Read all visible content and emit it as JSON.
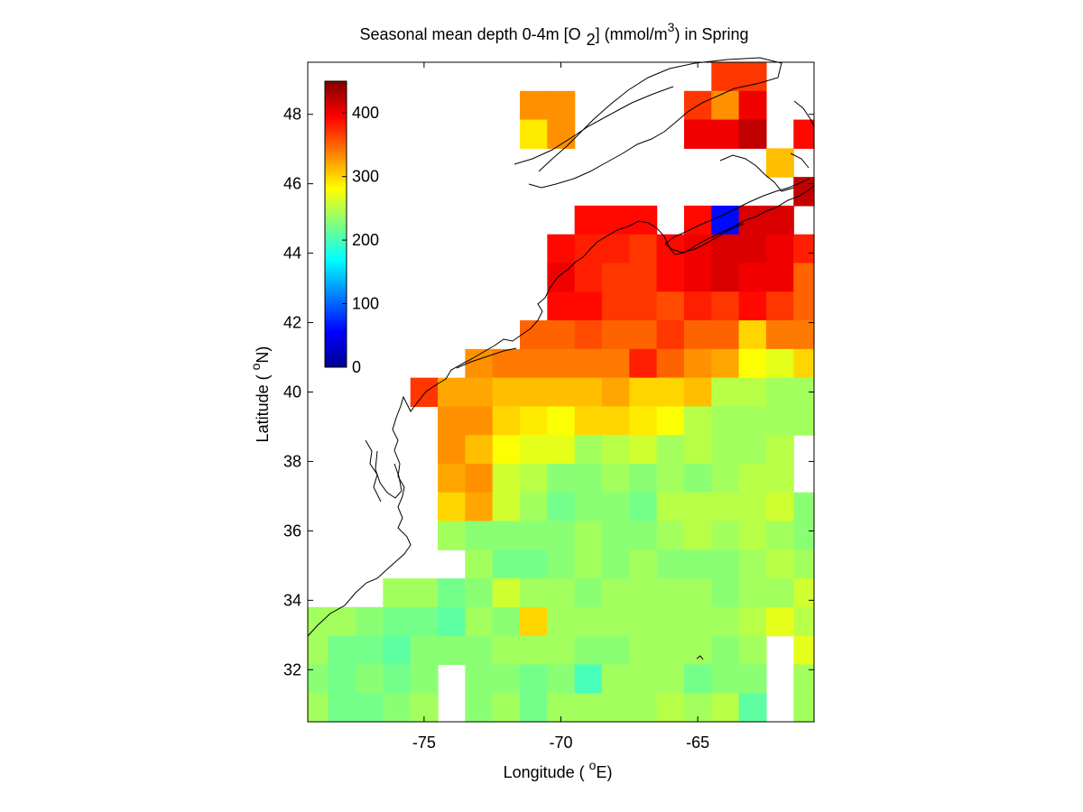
{
  "chart_data": {
    "type": "heatmap",
    "title": "Seasonal mean depth 0-4m [O 2] (mmol/m3) in  Spring",
    "title_parts": {
      "prefix": "Seasonal mean depth 0-4m [O",
      "sub": "2",
      "middle": "] (mmol/m",
      "sup": "3",
      "suffix": ") in  Spring"
    },
    "xlabel": "Longitude ( oE)",
    "xlabel_parts": {
      "prefix": "Longitude ( ",
      "sup": "o",
      "suffix": "E)"
    },
    "ylabel": "Latitude ( oN)",
    "ylabel_parts": {
      "prefix": "Latitude ( ",
      "sup": "o",
      "suffix": "N)"
    },
    "xlim": [
      -79.25,
      -60.75
    ],
    "ylim": [
      30.5,
      49.5
    ],
    "xticks": [
      -75,
      -70,
      -65
    ],
    "xtick_labels": [
      "-75",
      "-70",
      "-65"
    ],
    "yticks": [
      32,
      34,
      36,
      38,
      40,
      42,
      44,
      46,
      48
    ],
    "ytick_labels": [
      "32",
      "34",
      "36",
      "38",
      "40",
      "42",
      "44",
      "46",
      "48"
    ],
    "colorbar": {
      "min": 0,
      "max": 450,
      "ticks": [
        0,
        100,
        200,
        300,
        400
      ],
      "tick_labels": [
        "0",
        "100",
        "200",
        "300",
        "400"
      ],
      "colormap": "jet",
      "placement": "upper-left inside axes"
    },
    "grid_resolution_deg": 1,
    "lon_centers": [
      -79,
      -78,
      -77,
      -76,
      -75,
      -74,
      -73,
      -72,
      -71,
      -70,
      -69,
      -68,
      -67,
      -66,
      -65,
      -64,
      -63,
      -62,
      -61
    ],
    "lat_centers": [
      49,
      48,
      47,
      46,
      45,
      44,
      43,
      42,
      41,
      40,
      39,
      38,
      37,
      36,
      35,
      34,
      33,
      32,
      31
    ],
    "values": [
      [
        null,
        null,
        null,
        null,
        null,
        null,
        null,
        null,
        null,
        null,
        null,
        null,
        null,
        null,
        null,
        370,
        370,
        null,
        null
      ],
      [
        null,
        null,
        null,
        null,
        null,
        null,
        null,
        null,
        330,
        330,
        null,
        null,
        null,
        null,
        370,
        330,
        400,
        null,
        null
      ],
      [
        null,
        null,
        null,
        null,
        null,
        null,
        null,
        null,
        290,
        330,
        null,
        null,
        null,
        null,
        400,
        400,
        420,
        null,
        390
      ],
      [
        null,
        null,
        null,
        null,
        null,
        null,
        null,
        null,
        null,
        null,
        null,
        null,
        null,
        null,
        null,
        null,
        null,
        310,
        null
      ],
      [
        null,
        null,
        null,
        null,
        null,
        null,
        null,
        null,
        null,
        null,
        null,
        null,
        null,
        null,
        null,
        null,
        null,
        null,
        420
      ],
      [
        null,
        null,
        null,
        null,
        null,
        null,
        null,
        null,
        null,
        null,
        390,
        390,
        390,
        null,
        390,
        60,
        410,
        410,
        null
      ],
      [
        null,
        null,
        null,
        null,
        null,
        null,
        null,
        null,
        null,
        390,
        380,
        380,
        370,
        390,
        400,
        410,
        410,
        400,
        380
      ],
      [
        null,
        null,
        null,
        null,
        null,
        null,
        null,
        null,
        null,
        400,
        380,
        370,
        370,
        390,
        400,
        410,
        400,
        400,
        350
      ],
      [
        null,
        null,
        null,
        null,
        null,
        null,
        null,
        null,
        null,
        390,
        390,
        370,
        370,
        360,
        380,
        370,
        390,
        370,
        350
      ],
      [
        null,
        null,
        null,
        null,
        null,
        null,
        null,
        null,
        350,
        350,
        360,
        350,
        350,
        370,
        350,
        350,
        300,
        340,
        340
      ],
      [
        null,
        null,
        null,
        null,
        null,
        null,
        330,
        340,
        340,
        340,
        340,
        340,
        380,
        350,
        330,
        320,
        280,
        270,
        300
      ],
      [
        null,
        null,
        null,
        null,
        370,
        320,
        320,
        310,
        310,
        310,
        310,
        320,
        300,
        300,
        310,
        250,
        250,
        240,
        240
      ],
      [
        null,
        null,
        null,
        null,
        null,
        330,
        330,
        300,
        290,
        280,
        300,
        300,
        290,
        280,
        250,
        240,
        240,
        240,
        240
      ],
      [
        null,
        null,
        null,
        null,
        null,
        330,
        310,
        280,
        270,
        270,
        240,
        250,
        260,
        240,
        250,
        240,
        240,
        250,
        null
      ],
      [
        null,
        null,
        null,
        null,
        null,
        320,
        330,
        260,
        250,
        230,
        230,
        240,
        230,
        240,
        230,
        240,
        250,
        250,
        null
      ],
      [
        null,
        null,
        null,
        null,
        null,
        300,
        320,
        260,
        240,
        220,
        230,
        230,
        220,
        250,
        250,
        250,
        250,
        260,
        230
      ],
      [
        null,
        null,
        null,
        null,
        null,
        240,
        230,
        230,
        230,
        230,
        240,
        230,
        230,
        240,
        250,
        240,
        250,
        240,
        230
      ],
      [
        null,
        null,
        null,
        null,
        null,
        null,
        240,
        220,
        220,
        230,
        240,
        230,
        240,
        230,
        230,
        230,
        240,
        250,
        240
      ],
      [
        null,
        null,
        null,
        240,
        240,
        220,
        230,
        260,
        240,
        240,
        230,
        240,
        240,
        240,
        240,
        230,
        240,
        240,
        260
      ],
      [
        240,
        240,
        230,
        220,
        220,
        210,
        240,
        230,
        300,
        240,
        240,
        240,
        240,
        240,
        240,
        240,
        250,
        270,
        250
      ],
      [
        240,
        220,
        220,
        210,
        230,
        230,
        230,
        240,
        240,
        240,
        230,
        230,
        240,
        240,
        240,
        230,
        240,
        null,
        270
      ],
      [
        230,
        220,
        230,
        220,
        230,
        null,
        230,
        230,
        220,
        230,
        200,
        240,
        240,
        240,
        220,
        230,
        230,
        null,
        240
      ],
      [
        240,
        220,
        220,
        230,
        240,
        null,
        230,
        240,
        220,
        240,
        240,
        240,
        240,
        250,
        240,
        250,
        210,
        null,
        240
      ]
    ],
    "value_row_lats": [
      49.25,
      48.25,
      47.5,
      46.5,
      45.5,
      44.5,
      43.5,
      42.5,
      41.5,
      40.5,
      39.5,
      38.5,
      37.5,
      36.5,
      35.5,
      34.5,
      33.5,
      32.5,
      31.5,
      30.75,
      30.5,
      30.5,
      30.5
    ]
  }
}
